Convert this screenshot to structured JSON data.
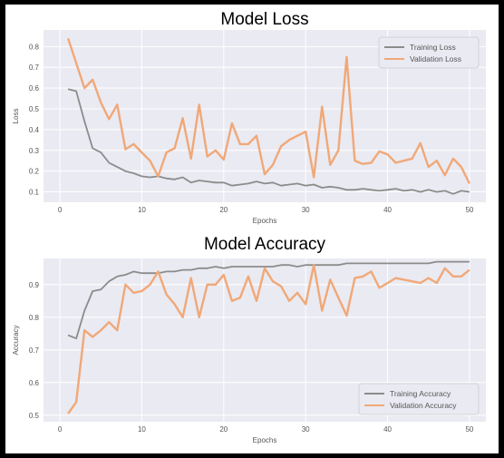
{
  "chart_data": [
    {
      "type": "line",
      "title": "Model Loss",
      "xlabel": "Epochs",
      "ylabel": "Loss",
      "xlim": [
        -2,
        52
      ],
      "ylim": [
        0.05,
        0.88
      ],
      "xticks": [
        0,
        10,
        20,
        30,
        40,
        50
      ],
      "yticks": [
        0.1,
        0.2,
        0.3,
        0.4,
        0.5,
        0.6,
        0.7,
        0.8
      ],
      "grid": true,
      "legend": "top-right",
      "x": [
        1,
        2,
        3,
        4,
        5,
        6,
        7,
        8,
        9,
        10,
        11,
        12,
        13,
        14,
        15,
        16,
        17,
        18,
        19,
        20,
        21,
        22,
        23,
        24,
        25,
        26,
        27,
        28,
        29,
        30,
        31,
        32,
        33,
        34,
        35,
        36,
        37,
        38,
        39,
        40,
        41,
        42,
        43,
        44,
        45,
        46,
        47,
        48,
        49,
        50
      ],
      "series": [
        {
          "name": "Training Loss",
          "color": "#8c8c8c",
          "values": [
            0.595,
            0.585,
            0.44,
            0.31,
            0.29,
            0.24,
            0.22,
            0.2,
            0.19,
            0.175,
            0.17,
            0.175,
            0.165,
            0.16,
            0.17,
            0.145,
            0.155,
            0.15,
            0.145,
            0.145,
            0.13,
            0.135,
            0.14,
            0.15,
            0.14,
            0.145,
            0.13,
            0.135,
            0.14,
            0.13,
            0.135,
            0.12,
            0.125,
            0.12,
            0.11,
            0.11,
            0.115,
            0.11,
            0.105,
            0.11,
            0.115,
            0.105,
            0.11,
            0.1,
            0.11,
            0.1,
            0.105,
            0.09,
            0.105,
            0.1
          ]
        },
        {
          "name": "Validation Loss",
          "color": "#f0a878",
          "values": [
            0.84,
            0.72,
            0.6,
            0.64,
            0.53,
            0.45,
            0.52,
            0.305,
            0.33,
            0.29,
            0.25,
            0.175,
            0.29,
            0.31,
            0.455,
            0.26,
            0.52,
            0.27,
            0.3,
            0.255,
            0.43,
            0.33,
            0.33,
            0.37,
            0.185,
            0.23,
            0.32,
            0.35,
            0.37,
            0.39,
            0.17,
            0.51,
            0.23,
            0.3,
            0.75,
            0.25,
            0.235,
            0.24,
            0.295,
            0.28,
            0.24,
            0.25,
            0.26,
            0.335,
            0.22,
            0.25,
            0.18,
            0.26,
            0.22,
            0.14
          ]
        }
      ]
    },
    {
      "type": "line",
      "title": "Model Accuracy",
      "xlabel": "Epochs",
      "ylabel": "Accuracy",
      "xlim": [
        -2,
        52
      ],
      "ylim": [
        0.48,
        0.98
      ],
      "xticks": [
        0,
        10,
        20,
        30,
        40,
        50
      ],
      "yticks": [
        0.5,
        0.6,
        0.7,
        0.8,
        0.9
      ],
      "grid": true,
      "legend": "bottom-right",
      "x": [
        1,
        2,
        3,
        4,
        5,
        6,
        7,
        8,
        9,
        10,
        11,
        12,
        13,
        14,
        15,
        16,
        17,
        18,
        19,
        20,
        21,
        22,
        23,
        24,
        25,
        26,
        27,
        28,
        29,
        30,
        31,
        32,
        33,
        34,
        35,
        36,
        37,
        38,
        39,
        40,
        41,
        42,
        43,
        44,
        45,
        46,
        47,
        48,
        49,
        50
      ],
      "series": [
        {
          "name": "Training Accuracy",
          "color": "#8c8c8c",
          "values": [
            0.745,
            0.735,
            0.82,
            0.88,
            0.885,
            0.91,
            0.925,
            0.93,
            0.94,
            0.935,
            0.935,
            0.935,
            0.94,
            0.94,
            0.945,
            0.945,
            0.95,
            0.95,
            0.955,
            0.95,
            0.955,
            0.955,
            0.955,
            0.955,
            0.955,
            0.955,
            0.96,
            0.96,
            0.955,
            0.96,
            0.96,
            0.96,
            0.96,
            0.96,
            0.965,
            0.965,
            0.965,
            0.965,
            0.965,
            0.965,
            0.965,
            0.965,
            0.965,
            0.965,
            0.965,
            0.97,
            0.97,
            0.97,
            0.97,
            0.97
          ]
        },
        {
          "name": "Validation Accuracy",
          "color": "#f0a878",
          "values": [
            0.505,
            0.54,
            0.76,
            0.74,
            0.76,
            0.785,
            0.76,
            0.9,
            0.875,
            0.88,
            0.9,
            0.94,
            0.87,
            0.84,
            0.8,
            0.92,
            0.8,
            0.9,
            0.9,
            0.93,
            0.85,
            0.86,
            0.925,
            0.85,
            0.95,
            0.91,
            0.895,
            0.85,
            0.875,
            0.84,
            0.96,
            0.82,
            0.915,
            0.86,
            0.805,
            0.92,
            0.925,
            0.94,
            0.89,
            0.905,
            0.92,
            0.915,
            0.91,
            0.905,
            0.92,
            0.905,
            0.95,
            0.925,
            0.925,
            0.945
          ]
        }
      ]
    }
  ]
}
